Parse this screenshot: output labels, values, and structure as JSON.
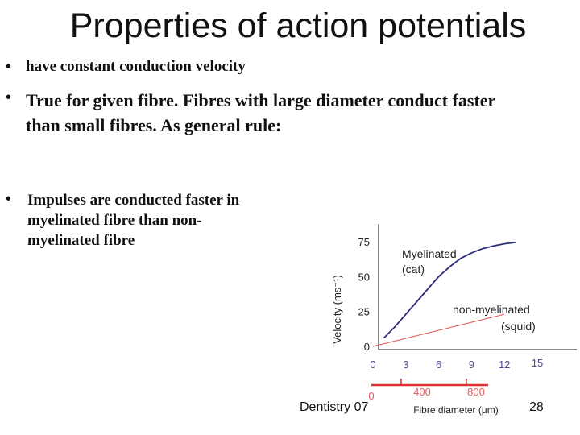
{
  "title": "Properties of action potentials",
  "bullets": [
    {
      "text": "have constant conduction velocity"
    },
    {
      "line1": "True for given fibre.  Fibres with large diameter conduct faster",
      "line2": "than small fibres. As general rule:"
    },
    {
      "text": "Impulses are conducted faster in myelinated fibre than non- myelinated fibre"
    }
  ],
  "footer": {
    "left": "Dentistry 07",
    "page": "28"
  },
  "chart_data": {
    "type": "line",
    "ylabel": "Velocity (ms⁻¹)",
    "xlabel": "Fibre diameter (µm)",
    "yticks": [
      "0",
      "25",
      "50",
      "75"
    ],
    "ylim": [
      0,
      80
    ],
    "x_axes": [
      {
        "name": "myelinated diameter",
        "ticks": [
          "0",
          "3",
          "6",
          "9",
          "12",
          "15"
        ],
        "range": [
          0,
          15
        ],
        "color": "#4a4a90"
      },
      {
        "name": "squid diameter",
        "ticks": [
          "0",
          "400",
          "800"
        ],
        "range": [
          0,
          800
        ],
        "color": "#e06060"
      }
    ],
    "annotations": [
      "Myelinated",
      "(cat)",
      "non-myelinated",
      "(squid)"
    ],
    "series": [
      {
        "name": "Myelinated (cat)",
        "color": "#2c2c7c",
        "points": [
          [
            1,
            6
          ],
          [
            2,
            14
          ],
          [
            3,
            23
          ],
          [
            4,
            32
          ],
          [
            5,
            41
          ],
          [
            6,
            50
          ],
          [
            7,
            57
          ],
          [
            8,
            63
          ],
          [
            9,
            67
          ],
          [
            10,
            70
          ],
          [
            11,
            72
          ],
          [
            12,
            73.5
          ],
          [
            13,
            74.5
          ]
        ]
      },
      {
        "name": "non-myelinated (squid)",
        "color": "#e05050",
        "points": [
          [
            0,
            0
          ],
          [
            12,
            23
          ]
        ]
      }
    ]
  }
}
